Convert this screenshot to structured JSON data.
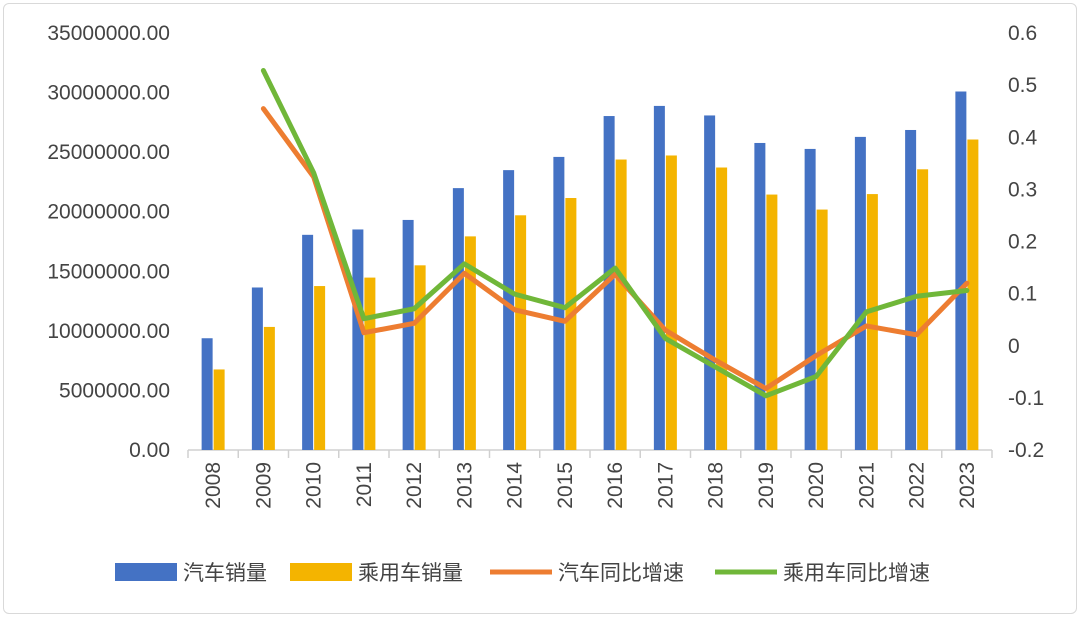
{
  "chart_data": {
    "type": "bar",
    "categories": [
      "2008",
      "2009",
      "2010",
      "2011",
      "2012",
      "2013",
      "2014",
      "2015",
      "2016",
      "2017",
      "2018",
      "2019",
      "2020",
      "2021",
      "2022",
      "2023"
    ],
    "series": [
      {
        "name": "汽车销量",
        "type": "bar",
        "axis": "left",
        "color": "#4472C4",
        "values": [
          9380000,
          13640000,
          18060000,
          18510000,
          19310000,
          21980000,
          23490000,
          24600000,
          28030000,
          28880000,
          28080000,
          25770000,
          25270000,
          26280000,
          26860000,
          30090000
        ]
      },
      {
        "name": "乘用车销量",
        "type": "bar",
        "axis": "left",
        "color": "#F4B400",
        "values": [
          6760000,
          10330000,
          13760000,
          14470000,
          15500000,
          17930000,
          19700000,
          21150000,
          24380000,
          24720000,
          23710000,
          21440000,
          20180000,
          21480000,
          23560000,
          26060000
        ]
      },
      {
        "name": "汽车同比增速",
        "type": "line",
        "axis": "right",
        "color": "#ED7D31",
        "values": [
          null,
          0.455,
          0.324,
          0.025,
          0.043,
          0.139,
          0.069,
          0.047,
          0.137,
          0.03,
          -0.028,
          -0.082,
          -0.019,
          0.038,
          0.021,
          0.12
        ]
      },
      {
        "name": "乘用车同比增速",
        "type": "line",
        "axis": "right",
        "color": "#70B739",
        "values": [
          null,
          0.528,
          0.332,
          0.052,
          0.071,
          0.157,
          0.099,
          0.073,
          0.149,
          0.014,
          -0.041,
          -0.096,
          -0.059,
          0.065,
          0.095,
          0.106
        ]
      }
    ],
    "y_left": {
      "min": 0,
      "max": 35000000,
      "step": 5000000,
      "tick_labels": [
        "0.00",
        "5000000.00",
        "10000000.00",
        "15000000.00",
        "20000000.00",
        "25000000.00",
        "30000000.00",
        "35000000.00"
      ]
    },
    "y_right": {
      "min": -0.2,
      "max": 0.6,
      "step": 0.1,
      "tick_labels": [
        "-0.2",
        "-0.1",
        "0",
        "0.1",
        "0.2",
        "0.3",
        "0.4",
        "0.5",
        "0.6"
      ]
    },
    "grid": false,
    "legend": "bottom"
  }
}
